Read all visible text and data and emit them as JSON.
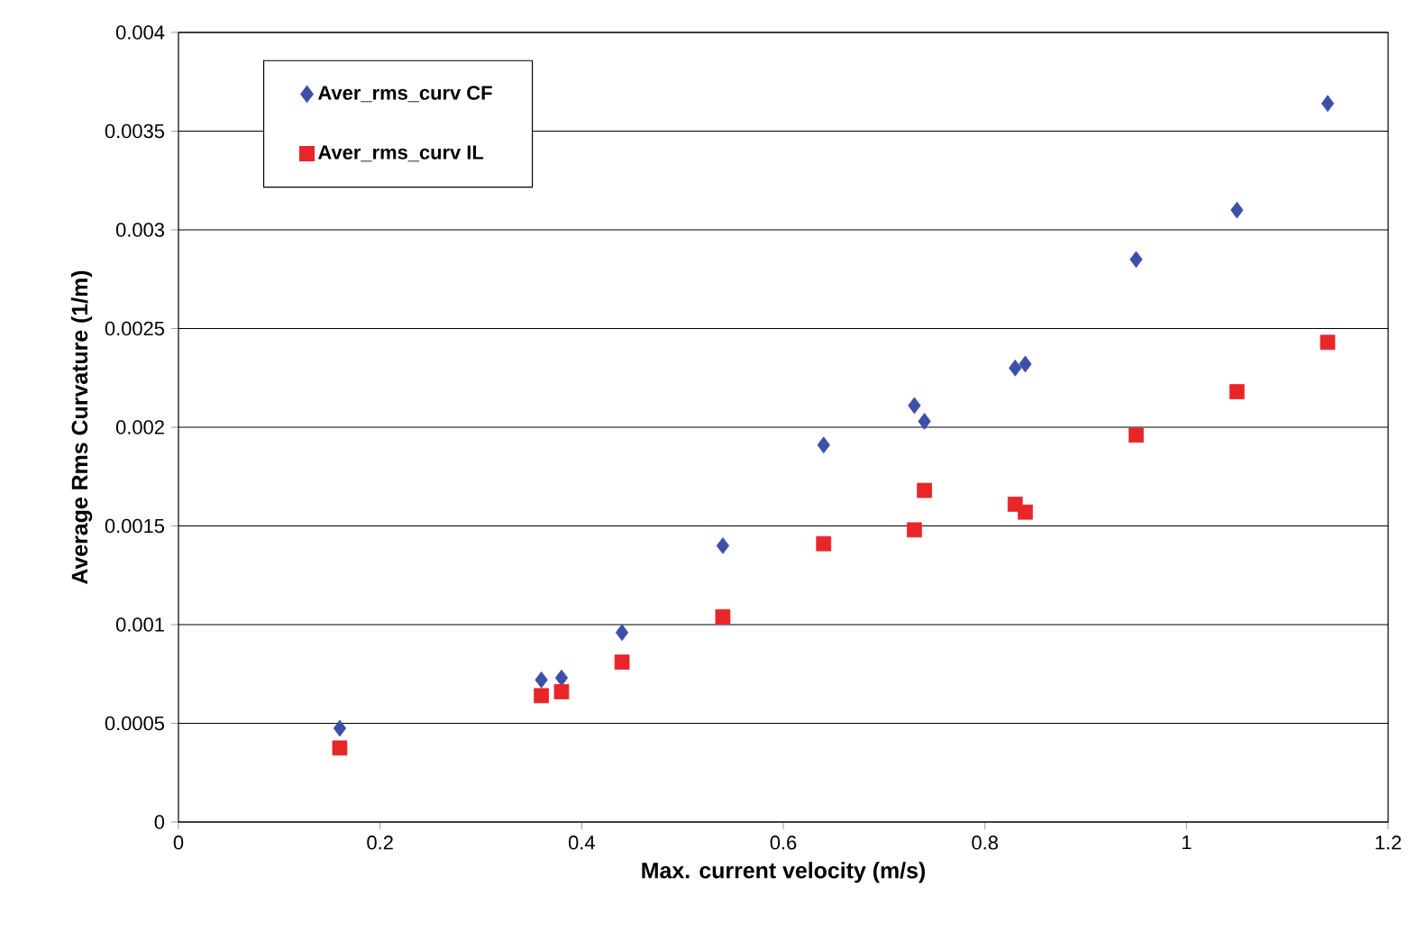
{
  "chart_data": {
    "type": "scatter",
    "xlabel": "Max. current velocity (m/s)",
    "ylabel": "Average Rms Curvature (1/m)",
    "x": [
      0.16,
      0.36,
      0.38,
      0.44,
      0.54,
      0.64,
      0.73,
      0.74,
      0.83,
      0.84,
      0.95,
      1.05,
      1.14
    ],
    "series": [
      {
        "name": "Aver_rms_curv CF",
        "color": "#3d4fa6",
        "marker": "diamond",
        "values": [
          0.000475,
          0.00072,
          0.00073,
          0.00096,
          0.0014,
          0.00191,
          0.00211,
          0.00203,
          0.0023,
          0.00232,
          0.00285,
          0.0031,
          0.00364
        ]
      },
      {
        "name": "Aver_rms_curv IL",
        "color": "#e8262a",
        "marker": "square",
        "values": [
          0.000375,
          0.00064,
          0.00066,
          0.00081,
          0.00104,
          0.00141,
          0.00148,
          0.00168,
          0.00161,
          0.00157,
          0.00196,
          0.00218,
          0.00243
        ]
      }
    ],
    "xlim": [
      0,
      1.2
    ],
    "xticks": [
      0,
      0.2,
      0.4,
      0.6,
      0.8,
      1,
      1.2
    ],
    "ylim": [
      0,
      0.004
    ],
    "yticks": [
      0,
      0.0005,
      0.001,
      0.0015,
      0.002,
      0.0025,
      0.003,
      0.0035,
      0.004
    ],
    "grid": "y",
    "legend": "top left"
  }
}
